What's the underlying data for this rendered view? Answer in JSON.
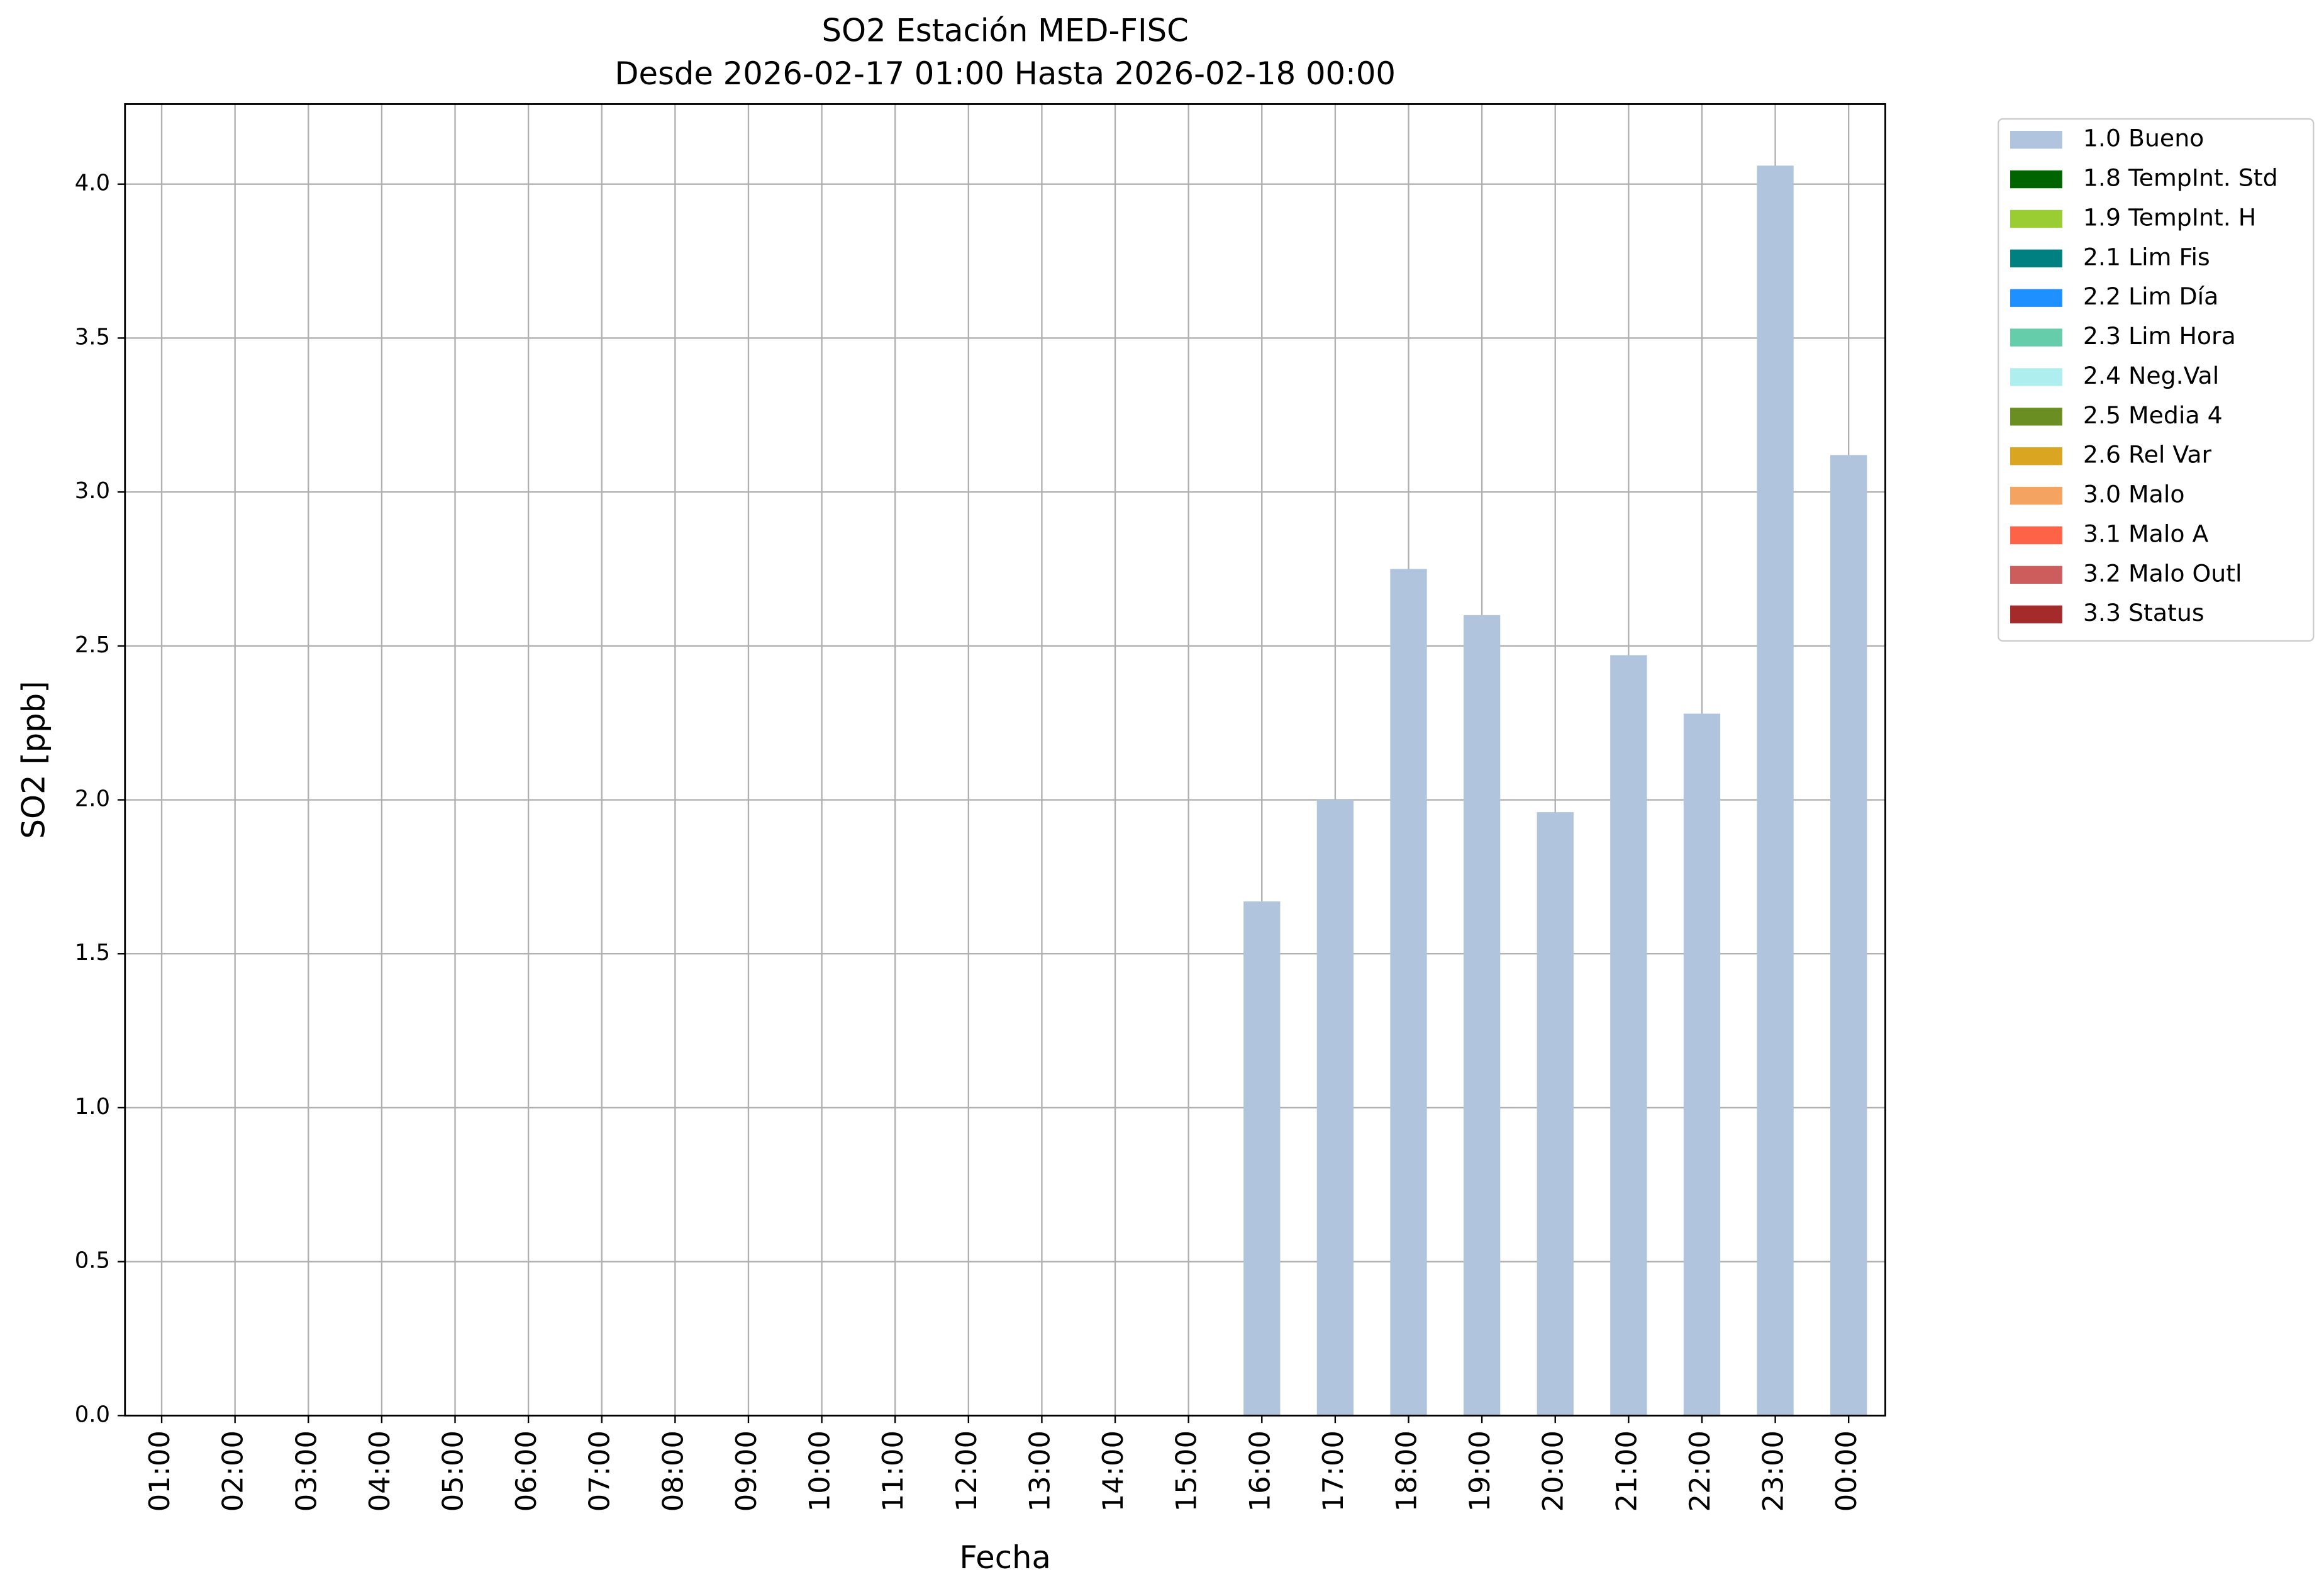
{
  "chart_data": {
    "type": "bar",
    "stacked": true,
    "title": "SO2 Estación MED-FISC",
    "subtitle": "Desde 2026-02-17 01:00 Hasta 2026-02-18 00:00",
    "x_label": "Fecha",
    "y_label": "SO2 [ppb]",
    "categories": [
      "01:00",
      "02:00",
      "03:00",
      "04:00",
      "05:00",
      "06:00",
      "07:00",
      "08:00",
      "09:00",
      "10:00",
      "11:00",
      "12:00",
      "13:00",
      "14:00",
      "15:00",
      "16:00",
      "17:00",
      "18:00",
      "19:00",
      "20:00",
      "21:00",
      "22:00",
      "23:00",
      "00:00"
    ],
    "series": [
      {
        "name": "1.0 Bueno",
        "color": "#b0c4de",
        "values": [
          null,
          null,
          null,
          null,
          null,
          null,
          null,
          null,
          null,
          null,
          null,
          null,
          null,
          null,
          null,
          1.67,
          2.0,
          2.75,
          2.6,
          1.96,
          2.47,
          2.28,
          4.06,
          3.12
        ]
      },
      {
        "name": "1.8 TempInt. Std",
        "color": "#006400",
        "values": [
          null,
          null,
          null,
          null,
          null,
          null,
          null,
          null,
          null,
          null,
          null,
          null,
          null,
          null,
          null,
          null,
          null,
          null,
          null,
          null,
          null,
          null,
          null,
          null
        ]
      },
      {
        "name": "1.9 TempInt. H",
        "color": "#9acd32",
        "values": [
          null,
          null,
          null,
          null,
          null,
          null,
          null,
          null,
          null,
          null,
          null,
          null,
          null,
          null,
          null,
          null,
          null,
          null,
          null,
          null,
          null,
          null,
          null,
          null
        ]
      },
      {
        "name": "2.1 Lim Fis",
        "color": "#008080",
        "values": [
          null,
          null,
          null,
          null,
          null,
          null,
          null,
          null,
          null,
          null,
          null,
          null,
          null,
          null,
          null,
          null,
          null,
          null,
          null,
          null,
          null,
          null,
          null,
          null
        ]
      },
      {
        "name": "2.2 Lim Día",
        "color": "#1e90ff",
        "values": [
          null,
          null,
          null,
          null,
          null,
          null,
          null,
          null,
          null,
          null,
          null,
          null,
          null,
          null,
          null,
          null,
          null,
          null,
          null,
          null,
          null,
          null,
          null,
          null
        ]
      },
      {
        "name": "2.3 Lim Hora",
        "color": "#66cdaa",
        "values": [
          null,
          null,
          null,
          null,
          null,
          null,
          null,
          null,
          null,
          null,
          null,
          null,
          null,
          null,
          null,
          null,
          null,
          null,
          null,
          null,
          null,
          null,
          null,
          null
        ]
      },
      {
        "name": "2.4 Neg.Val",
        "color": "#afeeee",
        "values": [
          null,
          null,
          null,
          null,
          null,
          null,
          null,
          null,
          null,
          null,
          null,
          null,
          null,
          null,
          null,
          null,
          null,
          null,
          null,
          null,
          null,
          null,
          null,
          null
        ]
      },
      {
        "name": "2.5 Media 4",
        "color": "#6b8e23",
        "values": [
          null,
          null,
          null,
          null,
          null,
          null,
          null,
          null,
          null,
          null,
          null,
          null,
          null,
          null,
          null,
          null,
          null,
          null,
          null,
          null,
          null,
          null,
          null,
          null
        ]
      },
      {
        "name": "2.6 Rel Var",
        "color": "#daa520",
        "values": [
          null,
          null,
          null,
          null,
          null,
          null,
          null,
          null,
          null,
          null,
          null,
          null,
          null,
          null,
          null,
          null,
          null,
          null,
          null,
          null,
          null,
          null,
          null,
          null
        ]
      },
      {
        "name": "3.0 Malo",
        "color": "#f4a460",
        "values": [
          null,
          null,
          null,
          null,
          null,
          null,
          null,
          null,
          null,
          null,
          null,
          null,
          null,
          null,
          null,
          null,
          null,
          null,
          null,
          null,
          null,
          null,
          null,
          null
        ]
      },
      {
        "name": "3.1 Malo A",
        "color": "#ff6347",
        "values": [
          null,
          null,
          null,
          null,
          null,
          null,
          null,
          null,
          null,
          null,
          null,
          null,
          null,
          null,
          null,
          null,
          null,
          null,
          null,
          null,
          null,
          null,
          null,
          null
        ]
      },
      {
        "name": "3.2 Malo Outl",
        "color": "#cd5c5c",
        "values": [
          null,
          null,
          null,
          null,
          null,
          null,
          null,
          null,
          null,
          null,
          null,
          null,
          null,
          null,
          null,
          null,
          null,
          null,
          null,
          null,
          null,
          null,
          null,
          null
        ]
      },
      {
        "name": "3.3 Status",
        "color": "#a52a2a",
        "values": [
          null,
          null,
          null,
          null,
          null,
          null,
          null,
          null,
          null,
          null,
          null,
          null,
          null,
          null,
          null,
          null,
          null,
          null,
          null,
          null,
          null,
          null,
          null,
          null
        ]
      }
    ],
    "ylim": [
      0,
      4.26
    ],
    "yticks": [
      {
        "value": 0,
        "label": "0.0"
      },
      0.5,
      {
        "value": 1,
        "label": "1.0"
      },
      1.5,
      {
        "value": 2,
        "label": "2.0"
      },
      2.5,
      {
        "value": 3,
        "label": "3.0"
      },
      3.5,
      {
        "value": 4,
        "label": "4.0"
      }
    ],
    "grid": true,
    "legend": "outside right"
  }
}
